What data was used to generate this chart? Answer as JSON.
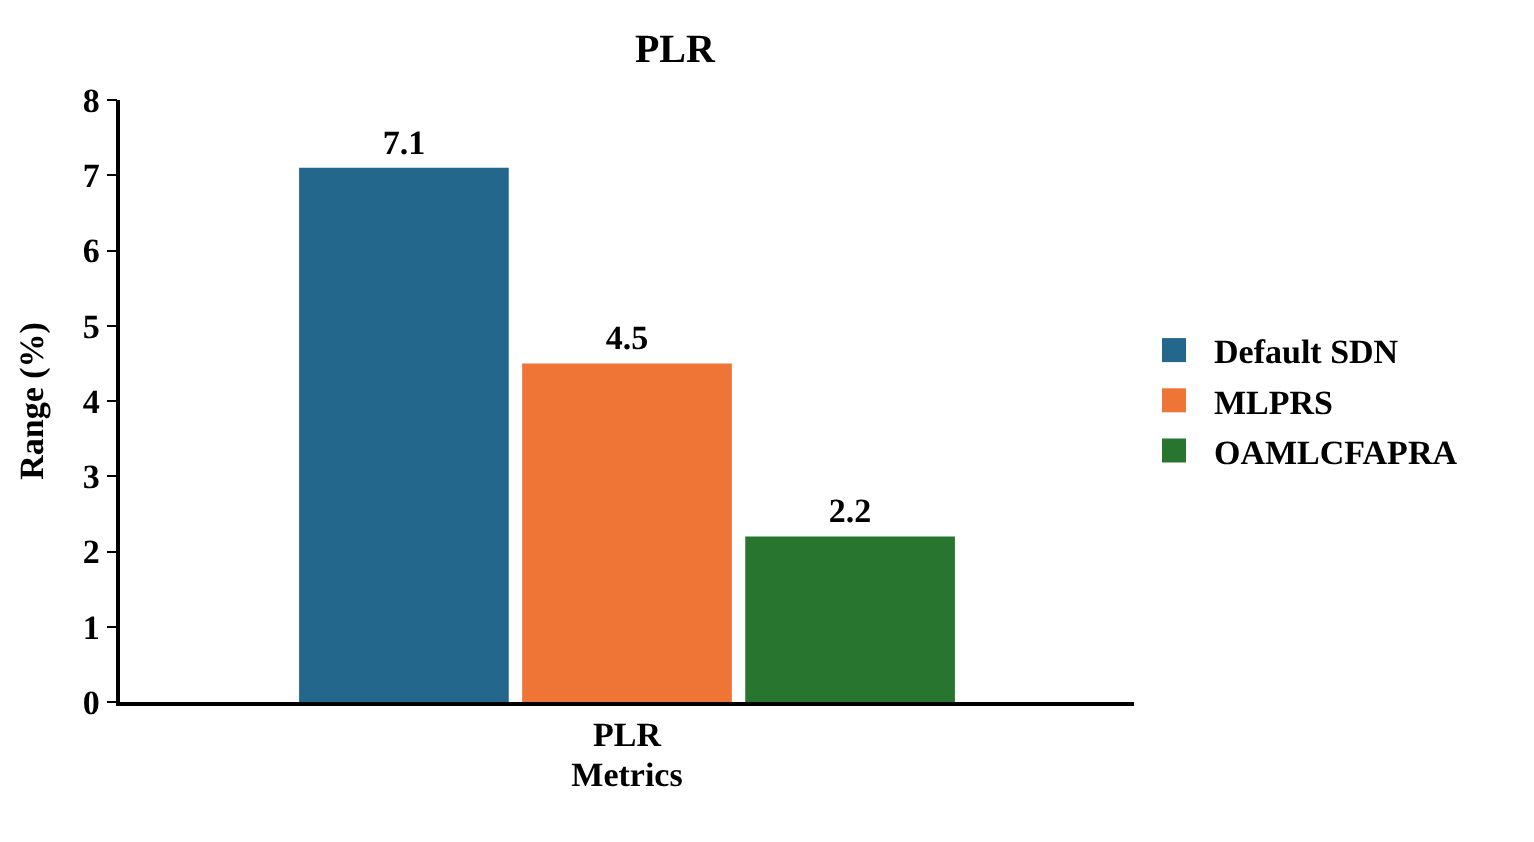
{
  "chart_data": {
    "type": "bar",
    "title": "PLR",
    "xlabel": "Metrics",
    "ylabel": "Range (%)",
    "categories": [
      "PLR"
    ],
    "series": [
      {
        "name": "Default SDN",
        "color": "#23678c",
        "values": [
          7.1
        ]
      },
      {
        "name": "MLPRS",
        "color": "#ee7535",
        "values": [
          4.5
        ]
      },
      {
        "name": "OAMLCFAPRA",
        "color": "#27752f",
        "values": [
          2.2
        ]
      }
    ],
    "ylim": [
      0,
      8
    ],
    "yticks": [
      0,
      1,
      2,
      3,
      4,
      5,
      6,
      7,
      8
    ],
    "legend": "right",
    "data_labels": true
  }
}
